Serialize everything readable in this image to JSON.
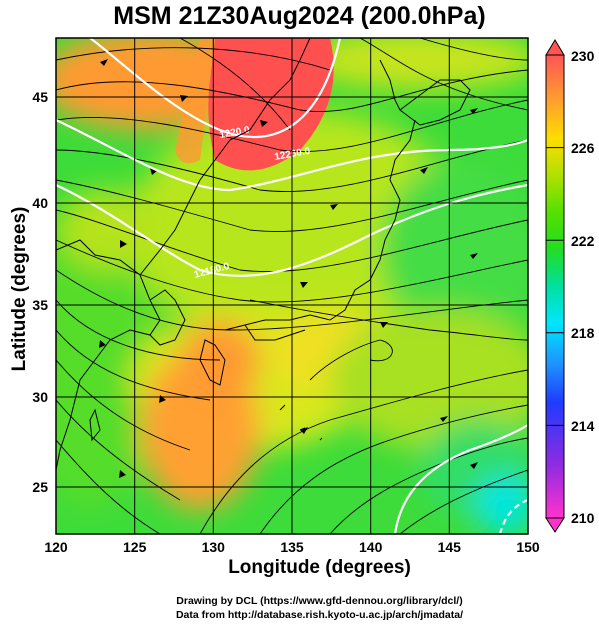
{
  "title": "MSM 21Z30Aug2024 (200.0hPa)",
  "xlabel": "Longitude (degrees)",
  "ylabel": "Latitude  (degrees)",
  "credits": [
    "Drawing by DCL (https://www.gfd-dennou.org/library/dcl/)",
    "Data from http://database.rish.kyoto-u.ac.jp/arch/jmadata/"
  ],
  "map": {
    "lon_range": [
      120,
      150
    ],
    "lat_range": [
      22.4,
      47.6
    ],
    "lon_ticks": [
      120,
      125,
      130,
      135,
      140,
      145,
      150
    ],
    "lat_ticks": [
      25,
      30,
      35,
      40,
      45
    ],
    "grid": true,
    "field": "temperature (K) filled contours with streamlines",
    "contour_labels": [
      "1220.0",
      "12260.0",
      "12180.0"
    ]
  },
  "colorbar": {
    "min": 210,
    "max": 230,
    "ticks": [
      210,
      214,
      218,
      222,
      226,
      230
    ],
    "colors": [
      "#ff33cc",
      "#8a2be2",
      "#1f3cff",
      "#1e90ff",
      "#00e6ff",
      "#00e0a0",
      "#22dd22",
      "#55e000",
      "#b0e000",
      "#ffdd00",
      "#ff9933",
      "#ff5555"
    ]
  },
  "colors": {
    "warm": "#ff5555",
    "orange": "#ff9933",
    "yellow": "#ffdd33",
    "green": "#33dd33",
    "cyan": "#00e6ff"
  }
}
